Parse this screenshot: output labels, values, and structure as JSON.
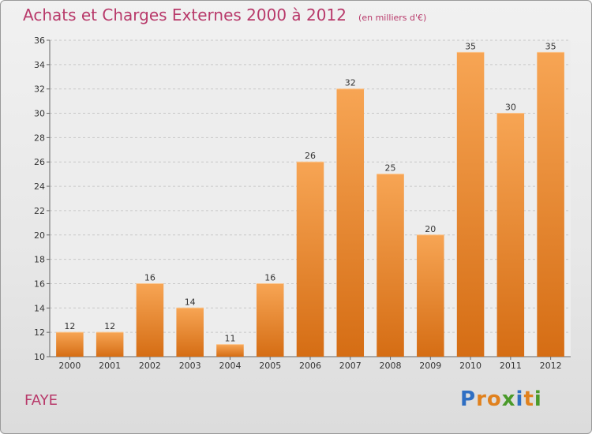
{
  "header": {
    "title": "Achats et Charges Externes 2000 à 2012",
    "subtitle": "(en milliers d'€)"
  },
  "commune": "FAYE",
  "logo": {
    "text": "Proxiti",
    "letters": [
      {
        "ch": "P",
        "color": "#2f6fc3"
      },
      {
        "ch": "r",
        "color": "#e0811e"
      },
      {
        "ch": "o",
        "color": "#e0811e"
      },
      {
        "ch": "x",
        "color": "#4a9a2a"
      },
      {
        "ch": "i",
        "color": "#2f6fc3"
      },
      {
        "ch": "t",
        "color": "#e0811e"
      },
      {
        "ch": "i",
        "color": "#4a9a2a"
      }
    ]
  },
  "colors": {
    "title": "#b8396a",
    "bar_top": "#f7a554",
    "bar_bottom": "#d56d14",
    "grid": "#c8c8c8",
    "axis": "#666666"
  },
  "chart_data": {
    "type": "bar",
    "title": "Achats et Charges Externes 2000 à 2012",
    "subtitle": "(en milliers d'€)",
    "xlabel": "",
    "ylabel": "",
    "categories": [
      "2000",
      "2001",
      "2002",
      "2003",
      "2004",
      "2005",
      "2006",
      "2007",
      "2008",
      "2009",
      "2010",
      "2011",
      "2012"
    ],
    "values": [
      12,
      12,
      16,
      14,
      11,
      16,
      26,
      32,
      25,
      20,
      35,
      30,
      35
    ],
    "ylim": [
      10,
      36
    ],
    "yticks": [
      10,
      12,
      14,
      16,
      18,
      20,
      22,
      24,
      26,
      28,
      30,
      32,
      34,
      36
    ],
    "grid": true,
    "legend": "none"
  }
}
